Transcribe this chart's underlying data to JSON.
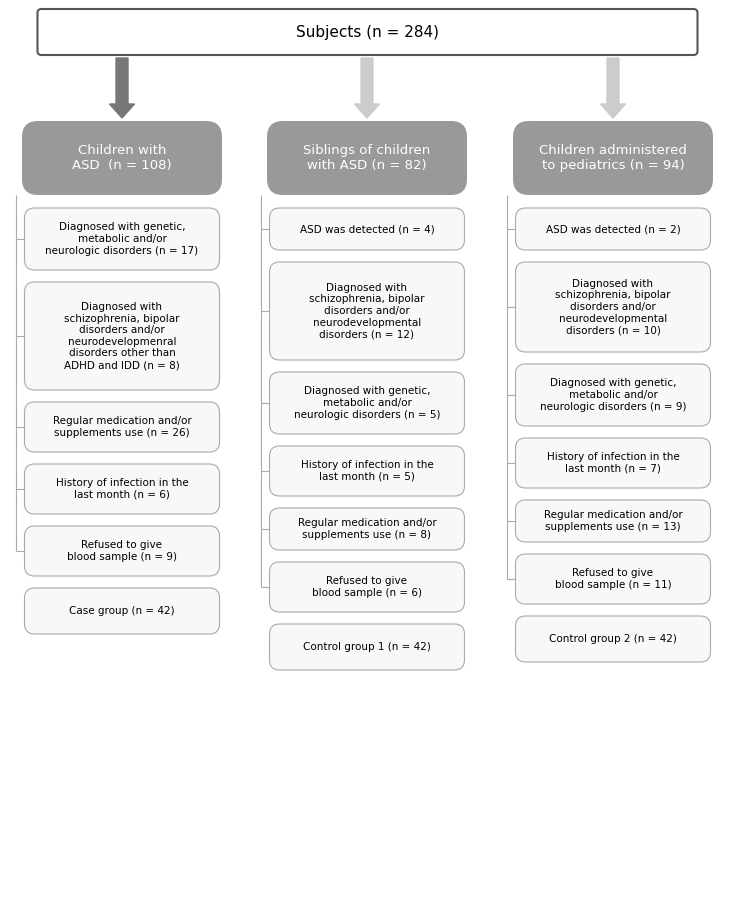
{
  "title_box": "Subjects (n = 284)",
  "col1_header": "Children with\nASD  (n = 108)",
  "col2_header": "Siblings of children\nwith ASD (n = 82)",
  "col3_header": "Children administered\nto pediatrics (n = 94)",
  "col1_boxes": [
    "Diagnosed with genetic,\nmetabolic and/or\nneurologic disorders (n = 17)",
    "Diagnosed with\nschizophrenia, bipolar\ndisorders and/or\nneurodevelopmenral\ndisorders other than\nADHD and IDD (n = 8)",
    "Regular medication and/or\nsupplements use (n = 26)",
    "History of infection in the\nlast month (n = 6)",
    "Refused to give\nblood sample (n = 9)",
    "Case group (n = 42)"
  ],
  "col2_boxes": [
    "ASD was detected (n = 4)",
    "Diagnosed with\nschizophrenia, bipolar\ndisorders and/or\nneurodevelopmental\ndisorders (n = 12)",
    "Diagnosed with genetic,\nmetabolic and/or\nneurologic disorders (n = 5)",
    "History of infection in the\nlast month (n = 5)",
    "Regular medication and/or\nsupplements use (n = 8)",
    "Refused to give\nblood sample (n = 6)",
    "Control group 1 (n = 42)"
  ],
  "col3_boxes": [
    "ASD was detected (n = 2)",
    "Diagnosed with\nschizophrenia, bipolar\ndisorders and/or\nneurodevelopmental\ndisorders (n = 10)",
    "Diagnosed with genetic,\nmetabolic and/or\nneurologic disorders (n = 9)",
    "History of infection in the\nlast month (n = 7)",
    "Regular medication and/or\nsupplements use (n = 13)",
    "Refused to give\nblood sample (n = 11)",
    "Control group 2 (n = 42)"
  ],
  "header_color": "#999999",
  "header_text_color": "#ffffff",
  "box_facecolor": "#f8f8f8",
  "box_edgecolor": "#aaaaaa",
  "title_facecolor": "#ffffff",
  "title_edgecolor": "#555555",
  "arrow_color_col1": "#777777",
  "arrow_color_col23": "#cccccc",
  "bg_color": "#ffffff",
  "fontsize": 7.5,
  "header_fontsize": 9.5
}
